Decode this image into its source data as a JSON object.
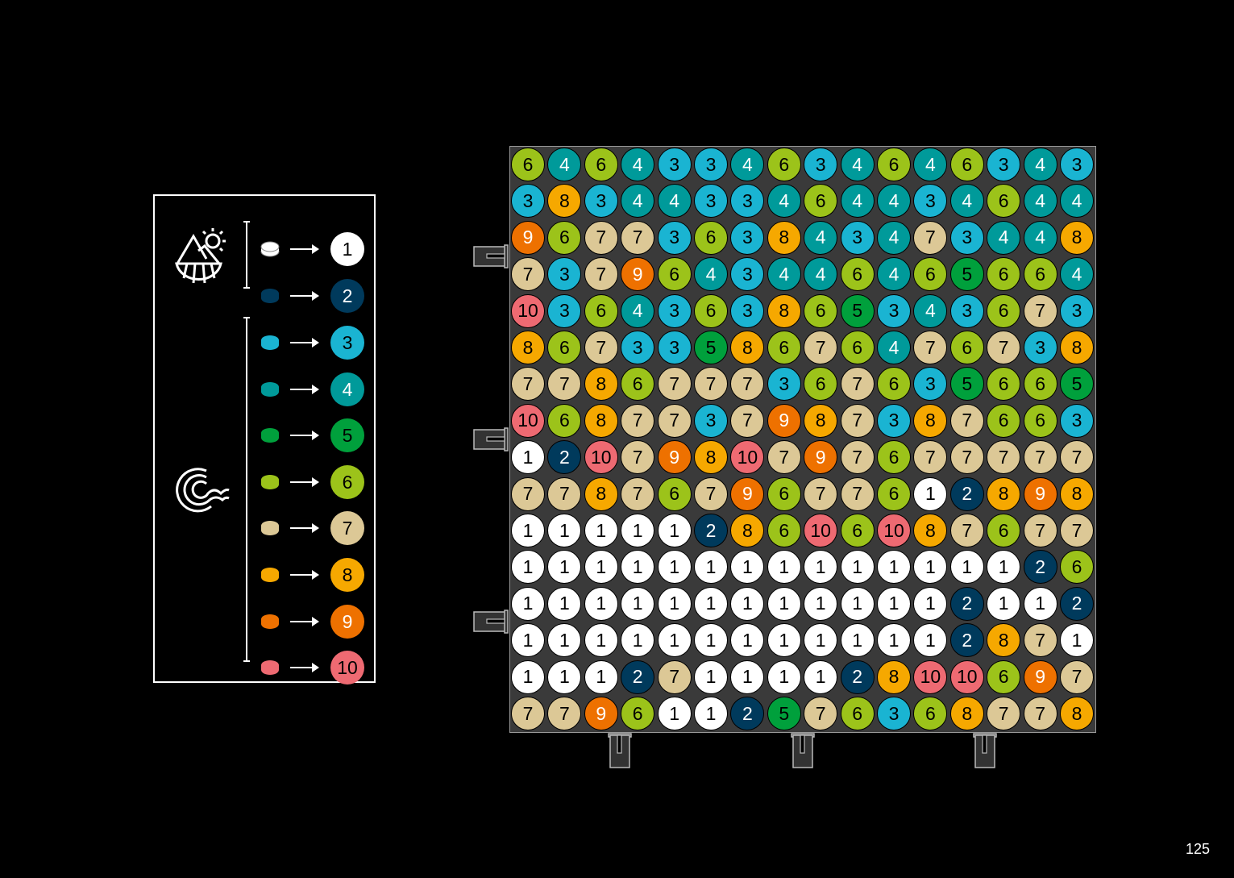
{
  "page_number": "125",
  "colors": {
    "1": "#ffffff",
    "2": "#003a5c",
    "3": "#1ab4d2",
    "4": "#009a9a",
    "5": "#00a03c",
    "6": "#9cc31a",
    "7": "#dcc896",
    "8": "#f6a800",
    "9": "#ee7100",
    "10": "#ee6a72"
  },
  "legend": {
    "groups": [
      {
        "icon": "mountain-sun-icon",
        "items": [
          "1",
          "2"
        ]
      },
      {
        "icon": "wave-icon",
        "items": [
          "3",
          "4",
          "5",
          "6",
          "7",
          "8",
          "9",
          "10"
        ]
      }
    ]
  },
  "grid": [
    [
      6,
      4,
      6,
      4,
      3,
      3,
      4,
      6,
      3,
      4,
      6,
      4,
      6,
      3,
      4,
      3
    ],
    [
      3,
      8,
      3,
      4,
      4,
      3,
      3,
      4,
      6,
      4,
      4,
      3,
      4,
      6,
      4,
      4
    ],
    [
      9,
      6,
      7,
      7,
      3,
      6,
      3,
      8,
      4,
      3,
      4,
      7,
      3,
      4,
      4,
      8
    ],
    [
      7,
      3,
      7,
      9,
      6,
      4,
      3,
      4,
      4,
      6,
      4,
      6,
      5,
      6,
      6,
      4
    ],
    [
      10,
      3,
      6,
      4,
      3,
      6,
      3,
      8,
      6,
      5,
      3,
      4,
      3,
      6,
      7,
      3
    ],
    [
      8,
      6,
      7,
      3,
      3,
      5,
      8,
      6,
      7,
      6,
      4,
      7,
      6,
      7,
      3,
      8
    ],
    [
      7,
      7,
      8,
      6,
      7,
      7,
      7,
      3,
      6,
      7,
      6,
      3,
      5,
      6,
      6,
      5
    ],
    [
      10,
      6,
      8,
      7,
      7,
      3,
      7,
      9,
      8,
      7,
      3,
      8,
      7,
      6,
      6,
      3
    ],
    [
      1,
      2,
      10,
      7,
      9,
      8,
      10,
      7,
      9,
      7,
      6,
      7,
      7,
      7,
      7,
      7
    ],
    [
      7,
      7,
      8,
      7,
      6,
      7,
      9,
      6,
      7,
      7,
      6,
      1,
      2,
      8,
      9,
      8
    ],
    [
      1,
      1,
      1,
      1,
      1,
      2,
      8,
      6,
      10,
      6,
      10,
      8,
      7,
      6,
      7,
      7
    ],
    [
      1,
      1,
      1,
      1,
      1,
      1,
      1,
      1,
      1,
      1,
      1,
      1,
      1,
      1,
      2,
      6
    ],
    [
      1,
      1,
      1,
      1,
      1,
      1,
      1,
      1,
      1,
      1,
      1,
      1,
      2,
      1,
      1,
      2
    ],
    [
      1,
      1,
      1,
      1,
      1,
      1,
      1,
      1,
      1,
      1,
      1,
      1,
      2,
      8,
      7,
      1
    ],
    [
      1,
      1,
      1,
      2,
      7,
      1,
      1,
      1,
      1,
      2,
      8,
      10,
      10,
      6,
      9,
      7
    ],
    [
      7,
      7,
      9,
      6,
      1,
      1,
      2,
      5,
      7,
      6,
      3,
      6,
      8,
      7,
      7,
      8
    ]
  ]
}
